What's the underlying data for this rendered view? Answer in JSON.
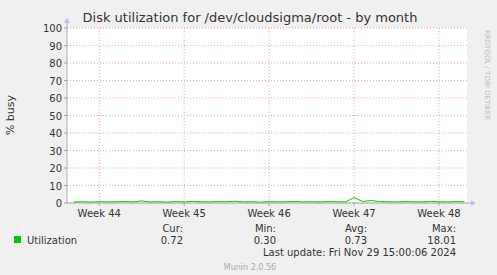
{
  "chart_data": {
    "type": "line",
    "title": "Disk utilization for /dev/cloudsigma/root - by month",
    "y_label": "% busy",
    "x": [
      43.7,
      43.8,
      43.9,
      44.0,
      44.1,
      44.2,
      44.3,
      44.4,
      44.5,
      44.6,
      44.7,
      44.8,
      44.9,
      45.0,
      45.1,
      45.2,
      45.3,
      45.4,
      45.5,
      45.6,
      45.7,
      45.8,
      45.9,
      46.0,
      46.1,
      46.2,
      46.3,
      46.4,
      46.5,
      46.6,
      46.7,
      46.8,
      46.9,
      47.0,
      47.1,
      47.2,
      47.3,
      47.4,
      47.5,
      47.6,
      47.7,
      47.8,
      47.9,
      48.0,
      48.1,
      48.2,
      48.3
    ],
    "series": [
      {
        "name": "Utilization",
        "color": "#00cc00",
        "values": [
          0.6,
          0.7,
          0.5,
          0.8,
          0.6,
          0.7,
          0.9,
          0.6,
          1.2,
          0.6,
          0.7,
          0.5,
          0.8,
          0.6,
          0.9,
          0.7,
          0.6,
          0.8,
          0.7,
          1.0,
          0.6,
          0.7,
          0.5,
          0.8,
          0.6,
          0.7,
          0.9,
          0.6,
          0.7,
          0.6,
          0.8,
          0.7,
          0.6,
          3.1,
          0.9,
          1.4,
          0.8,
          0.7,
          0.6,
          0.8,
          0.7,
          0.6,
          0.9,
          0.7,
          0.6,
          0.8,
          0.7
        ],
        "stats": [
          {
            "value": 0.72,
            "label": "0.72"
          },
          {
            "value": 0.3,
            "label": "0.30"
          },
          {
            "value": 0.73,
            "label": "0.73"
          },
          {
            "value": 18.01,
            "label": "18.01"
          }
        ]
      }
    ],
    "stat_headers": [
      "Cur:",
      "Min:",
      "Avg:",
      "Max:"
    ],
    "xlim": [
      43.62,
      48.33
    ],
    "xticks": [
      {
        "value": 44,
        "label": "Week 44"
      },
      {
        "value": 45,
        "label": "Week 45"
      },
      {
        "value": 46,
        "label": "Week 46"
      },
      {
        "value": 47,
        "label": "Week 47"
      },
      {
        "value": 48,
        "label": "Week 48"
      }
    ],
    "ylim": [
      0,
      100
    ],
    "yticks": [
      0,
      10,
      20,
      30,
      40,
      50,
      60,
      70,
      80,
      90,
      100
    ],
    "grid": true,
    "last_update": "Last update: Fri Nov 29 15:00:06 2024",
    "footer": "Munin 2.0.56",
    "watermark": "RRDTOOL / TOBI OETIKER"
  }
}
